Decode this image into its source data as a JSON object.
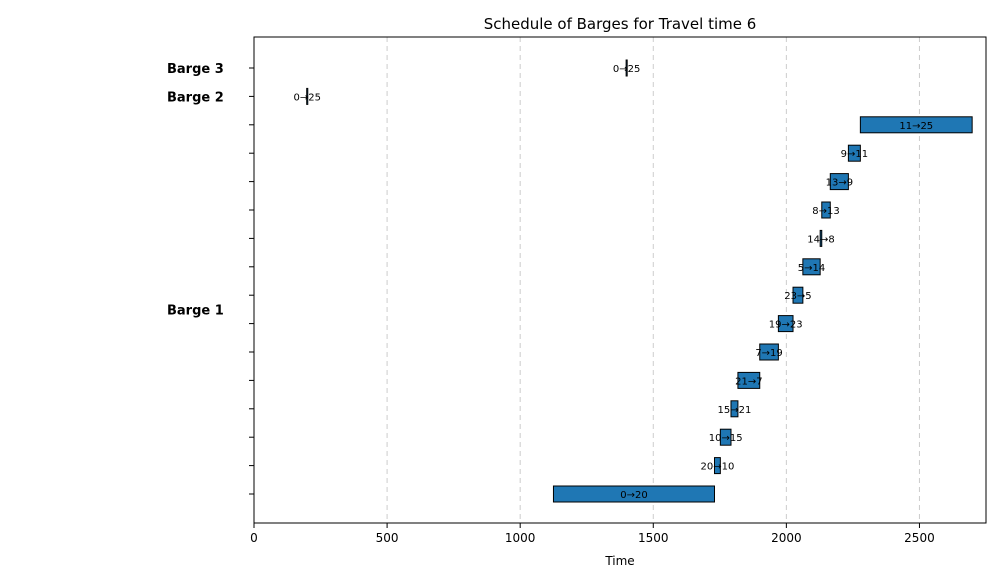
{
  "chart_data": {
    "type": "gantt",
    "title": "Schedule of Barges for Travel time 6",
    "xlabel": "Time",
    "ylabel": "",
    "xlim": [
      0,
      2750
    ],
    "xticks": [
      0,
      500,
      1000,
      1500,
      2000,
      2500
    ],
    "grid": "x-dashed",
    "colors": {
      "bar": "#1f77b4",
      "edge": "#000000",
      "grid": "#cccccc"
    },
    "barges": [
      {
        "name": "Barge 3",
        "row": 15
      },
      {
        "name": "Barge 2",
        "row": 14
      },
      {
        "name": "Barge 1",
        "row": 6.5
      }
    ],
    "tasks": [
      {
        "label": "0→20",
        "row": 0,
        "start": 1125,
        "end": 1730
      },
      {
        "label": "20→10",
        "row": 1,
        "start": 1730,
        "end": 1752
      },
      {
        "label": "10→15",
        "row": 2,
        "start": 1752,
        "end": 1792
      },
      {
        "label": "15→21",
        "row": 3,
        "start": 1792,
        "end": 1818
      },
      {
        "label": "21→7",
        "row": 4,
        "start": 1818,
        "end": 1900
      },
      {
        "label": "7→19",
        "row": 5,
        "start": 1900,
        "end": 1970
      },
      {
        "label": "19→23",
        "row": 6,
        "start": 1970,
        "end": 2025
      },
      {
        "label": "23→5",
        "row": 7,
        "start": 2025,
        "end": 2062
      },
      {
        "label": "5→14",
        "row": 8,
        "start": 2062,
        "end": 2127
      },
      {
        "label": "14→8",
        "row": 9,
        "start": 2127,
        "end": 2133
      },
      {
        "label": "8→13",
        "row": 10,
        "start": 2133,
        "end": 2165
      },
      {
        "label": "13→9",
        "row": 11,
        "start": 2165,
        "end": 2233
      },
      {
        "label": "9→11",
        "row": 12,
        "start": 2233,
        "end": 2278
      },
      {
        "label": "11→25",
        "row": 13,
        "start": 2278,
        "end": 2698
      },
      {
        "label": "0→25",
        "row": 14,
        "start": 198,
        "end": 202
      },
      {
        "label": "0→25",
        "row": 15,
        "start": 1398,
        "end": 1402
      }
    ]
  }
}
